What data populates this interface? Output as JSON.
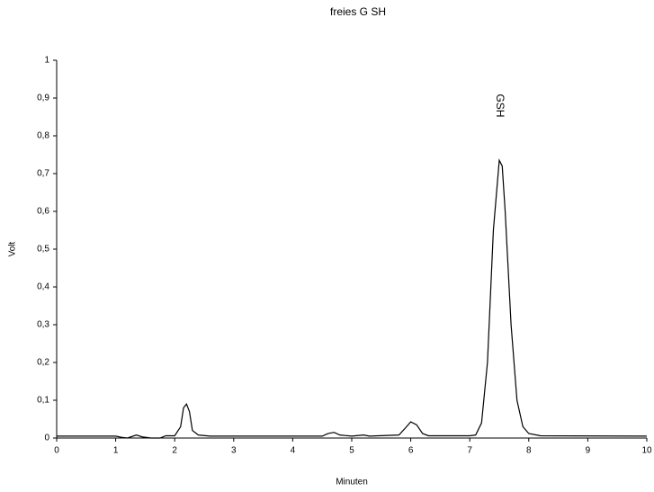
{
  "chart_data": {
    "type": "line",
    "title": "freies G SH",
    "x_label": "Minuten",
    "y_label": "Volt",
    "x": [
      0,
      1.0,
      1.1,
      1.2,
      1.35,
      1.45,
      1.6,
      1.75,
      1.85,
      2.0,
      2.1,
      2.15,
      2.2,
      2.25,
      2.3,
      2.4,
      2.6,
      4.5,
      4.6,
      4.7,
      4.8,
      5.0,
      5.2,
      5.3,
      5.8,
      5.9,
      6.0,
      6.1,
      6.2,
      6.3,
      7.0,
      7.1,
      7.2,
      7.3,
      7.4,
      7.5,
      7.55,
      7.6,
      7.7,
      7.8,
      7.9,
      8.0,
      8.2,
      10
    ],
    "values": [
      0.005,
      0.005,
      0.002,
      0.0,
      0.008,
      0.003,
      0.0,
      0.0,
      0.006,
      0.006,
      0.03,
      0.08,
      0.09,
      0.07,
      0.02,
      0.008,
      0.005,
      0.005,
      0.012,
      0.015,
      0.008,
      0.005,
      0.008,
      0.005,
      0.008,
      0.025,
      0.043,
      0.035,
      0.012,
      0.006,
      0.006,
      0.008,
      0.04,
      0.2,
      0.55,
      0.735,
      0.72,
      0.6,
      0.3,
      0.1,
      0.03,
      0.012,
      0.006,
      0.005
    ],
    "color": "#000000",
    "xlim": [
      0,
      10
    ],
    "xticks": [
      0,
      1,
      2,
      3,
      4,
      5,
      6,
      7,
      8,
      9,
      10
    ],
    "ylim": [
      0,
      1
    ],
    "yticks": [
      0,
      {
        "value": 0.1,
        "label": "0,1"
      },
      {
        "value": 0.2,
        "label": "0,2"
      },
      {
        "value": 0.3,
        "label": "0,3"
      },
      {
        "value": 0.4,
        "label": "0,4"
      },
      {
        "value": 0.5,
        "label": "0,5"
      },
      {
        "value": 0.6,
        "label": "0,6"
      },
      {
        "value": 0.7,
        "label": "0,7"
      },
      {
        "value": 0.8,
        "label": "0,8"
      },
      {
        "value": 0.9,
        "label": "0,9"
      },
      1
    ],
    "annotations": [
      {
        "text": "GSH",
        "x": 7.5,
        "y": 0.88
      }
    ]
  }
}
